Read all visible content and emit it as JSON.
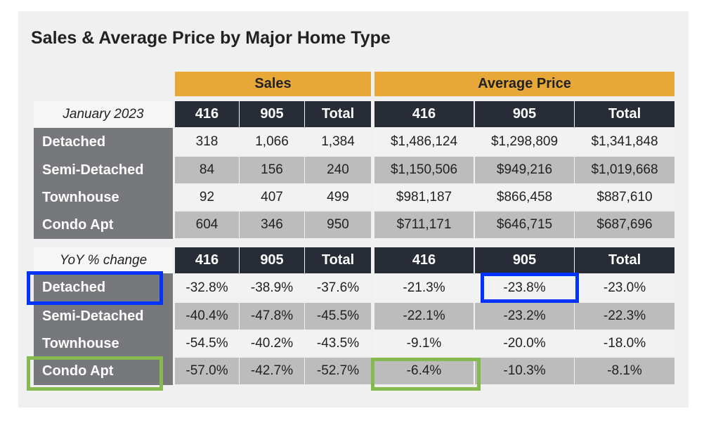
{
  "title": "Sales & Average Price by Major Home Type",
  "groups": [
    "Sales",
    "Average Price"
  ],
  "columns": [
    "416",
    "905",
    "Total",
    "416",
    "905",
    "Total"
  ],
  "tables": [
    {
      "corner": "January 2023",
      "rows": [
        {
          "label": "Detached",
          "values": [
            "318",
            "1,066",
            "1,384",
            "$1,486,124",
            "$1,298,809",
            "$1,341,848"
          ]
        },
        {
          "label": "Semi-Detached",
          "values": [
            "84",
            "156",
            "240",
            "$1,150,506",
            "$949,216",
            "$1,019,668"
          ]
        },
        {
          "label": "Townhouse",
          "values": [
            "92",
            "407",
            "499",
            "$981,187",
            "$866,458",
            "$887,610"
          ]
        },
        {
          "label": "Condo Apt",
          "values": [
            "604",
            "346",
            "950",
            "$711,171",
            "$646,715",
            "$687,696"
          ]
        }
      ]
    },
    {
      "corner": "YoY % change",
      "rows": [
        {
          "label": "Detached",
          "values": [
            "-32.8%",
            "-38.9%",
            "-37.6%",
            "-21.3%",
            "-23.8%",
            "-23.0%"
          ]
        },
        {
          "label": "Semi-Detached",
          "values": [
            "-40.4%",
            "-47.8%",
            "-45.5%",
            "-22.1%",
            "-23.2%",
            "-22.3%"
          ]
        },
        {
          "label": "Townhouse",
          "values": [
            "-54.5%",
            "-40.2%",
            "-43.5%",
            "-9.1%",
            "-20.0%",
            "-18.0%"
          ]
        },
        {
          "label": "Condo Apt",
          "values": [
            "-57.0%",
            "-42.7%",
            "-52.7%",
            "-6.4%",
            "-10.3%",
            "-8.1%"
          ]
        }
      ]
    }
  ],
  "colors": {
    "group_header": "#e8a838",
    "column_header": "#282c37",
    "row_label": "#77787b",
    "row_light": "#f2f2f2",
    "row_dark": "#bbbcbb",
    "highlight_blue": "#0033ff",
    "highlight_green": "#86b94f"
  }
}
